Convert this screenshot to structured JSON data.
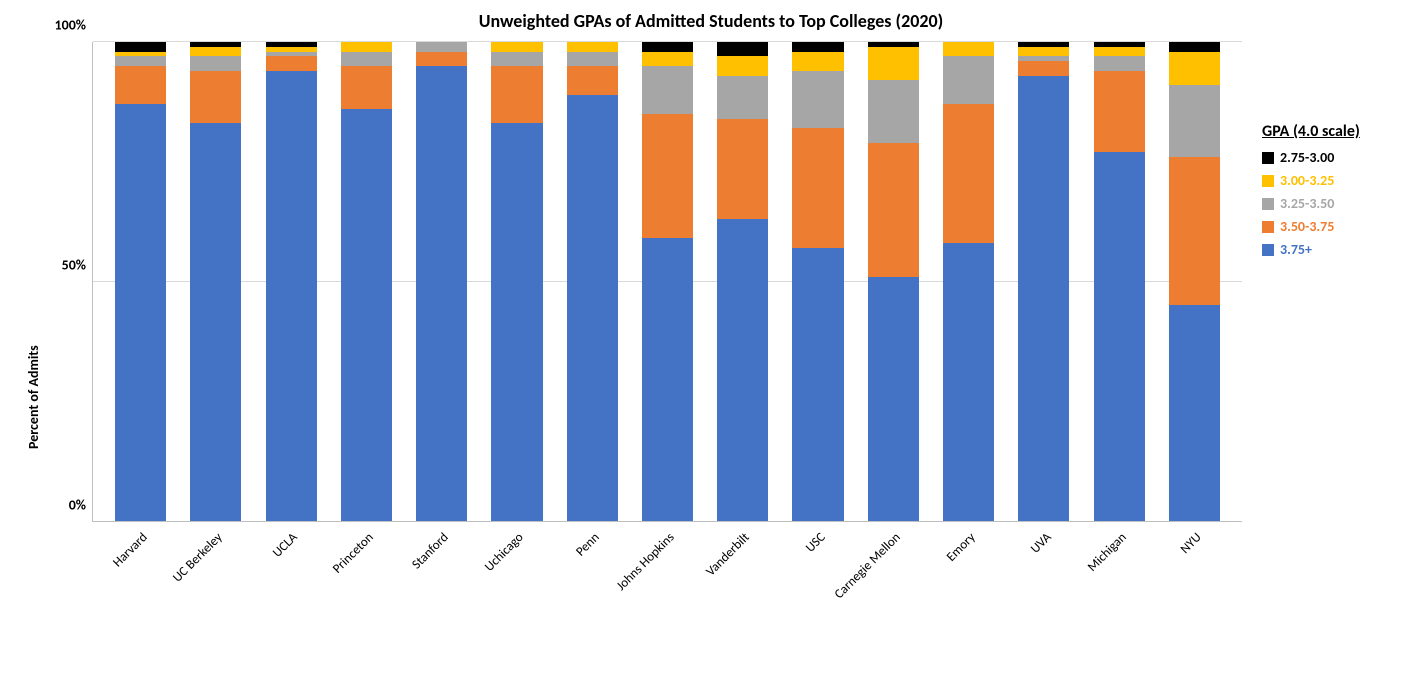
{
  "chart": {
    "type": "stacked-bar",
    "title": "Unweighted GPAs of Admitted Students to Top Colleges (2020)",
    "title_fontsize": 18,
    "y_axis_label": "Percent of Admits",
    "label_fontsize": 14,
    "tick_fontsize": 14,
    "x_label_fontsize": 13,
    "background_color": "#ffffff",
    "grid_color": "#d9d9d9",
    "axis_color": "#bfbfbf",
    "ylim": [
      0,
      100
    ],
    "ytick_positions": [
      0,
      50,
      100
    ],
    "ytick_labels": [
      "0%",
      "50%",
      "100%"
    ],
    "bar_width_ratio": 0.68,
    "legend": {
      "title": "GPA (4.0 scale)",
      "items": [
        {
          "label": "2.75-3.00",
          "color": "#000000"
        },
        {
          "label": "3.00-3.25",
          "color": "#ffc000"
        },
        {
          "label": "3.25-3.50",
          "color": "#a6a6a6"
        },
        {
          "label": "3.50-3.75",
          "color": "#ed7d31"
        },
        {
          "label": "3.75+",
          "color": "#4472c4"
        }
      ]
    },
    "series_order": [
      "3.75+",
      "3.50-3.75",
      "3.25-3.50",
      "3.00-3.25",
      "2.75-3.00"
    ],
    "series_colors": {
      "3.75+": "#4472c4",
      "3.50-3.75": "#ed7d31",
      "3.25-3.50": "#a6a6a6",
      "3.00-3.25": "#ffc000",
      "2.75-3.00": "#000000"
    },
    "categories": [
      "Harvard",
      "UC Berkeley",
      "UCLA",
      "Princeton",
      "Stanford",
      "Uchicago",
      "Penn",
      "Johns Hopkins",
      "Vanderbilt",
      "USC",
      "Carnegie Mellon",
      "Emory",
      "UVA",
      "Michigan",
      "NYU"
    ],
    "data": {
      "Harvard": {
        "3.75+": 87,
        "3.50-3.75": 8,
        "3.25-3.50": 2,
        "3.00-3.25": 1,
        "2.75-3.00": 2
      },
      "UC Berkeley": {
        "3.75+": 83,
        "3.50-3.75": 11,
        "3.25-3.50": 3,
        "3.00-3.25": 2,
        "2.75-3.00": 1
      },
      "UCLA": {
        "3.75+": 94,
        "3.50-3.75": 3,
        "3.25-3.50": 1,
        "3.00-3.25": 1,
        "2.75-3.00": 1
      },
      "Princeton": {
        "3.75+": 86,
        "3.50-3.75": 9,
        "3.25-3.50": 3,
        "3.00-3.25": 2,
        "2.75-3.00": 0
      },
      "Stanford": {
        "3.75+": 95,
        "3.50-3.75": 3,
        "3.25-3.50": 2,
        "3.00-3.25": 0,
        "2.75-3.00": 0
      },
      "Uchicago": {
        "3.75+": 83,
        "3.50-3.75": 12,
        "3.25-3.50": 3,
        "3.00-3.25": 2,
        "2.75-3.00": 0
      },
      "Penn": {
        "3.75+": 89,
        "3.50-3.75": 6,
        "3.25-3.50": 3,
        "3.00-3.25": 2,
        "2.75-3.00": 0
      },
      "Johns Hopkins": {
        "3.75+": 59,
        "3.50-3.75": 26,
        "3.25-3.50": 10,
        "3.00-3.25": 3,
        "2.75-3.00": 2
      },
      "Vanderbilt": {
        "3.75+": 63,
        "3.50-3.75": 21,
        "3.25-3.50": 9,
        "3.00-3.25": 4,
        "2.75-3.00": 3
      },
      "USC": {
        "3.75+": 57,
        "3.50-3.75": 25,
        "3.25-3.50": 12,
        "3.00-3.25": 4,
        "2.75-3.00": 2
      },
      "Carnegie Mellon": {
        "3.75+": 51,
        "3.50-3.75": 28,
        "3.25-3.50": 13,
        "3.00-3.25": 7,
        "2.75-3.00": 1
      },
      "Emory": {
        "3.75+": 58,
        "3.50-3.75": 29,
        "3.25-3.50": 10,
        "3.00-3.25": 3,
        "2.75-3.00": 0
      },
      "UVA": {
        "3.75+": 93,
        "3.50-3.75": 3,
        "3.25-3.50": 1,
        "3.00-3.25": 2,
        "2.75-3.00": 1
      },
      "Michigan": {
        "3.75+": 77,
        "3.50-3.75": 17,
        "3.25-3.50": 3,
        "3.00-3.25": 2,
        "2.75-3.00": 1
      },
      "NYU": {
        "3.75+": 45,
        "3.50-3.75": 31,
        "3.25-3.50": 15,
        "3.00-3.25": 7,
        "2.75-3.00": 2
      }
    }
  }
}
